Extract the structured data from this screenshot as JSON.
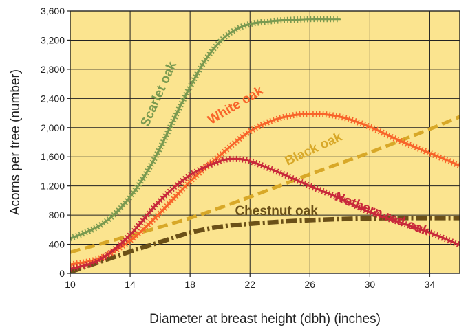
{
  "colors": {
    "plot_background": "#fbe48f",
    "grid": "#222222"
  },
  "chart_data": {
    "type": "line",
    "title": "",
    "xlabel": "Diameter at breast height (dbh) (inches)",
    "ylabel": "Acorns per tree (number)",
    "xlim": [
      10,
      36
    ],
    "ylim": [
      0,
      3600
    ],
    "grid": true,
    "x_ticks": [
      "10",
      "14",
      "18",
      "22",
      "26",
      "30",
      "34"
    ],
    "y_ticks": [
      "0",
      "400",
      "800",
      "1,200",
      "1,600",
      "2,000",
      "2,400",
      "2,800",
      "3,200",
      "3,600"
    ],
    "series": [
      {
        "name": "Scarlet oak",
        "color": "#7a9a50",
        "style": "stitched",
        "x": [
          10,
          11,
          12,
          13,
          14,
          15,
          16,
          17,
          18,
          19,
          20,
          21,
          22,
          23,
          24,
          25,
          26,
          27,
          28
        ],
        "y": [
          480,
          560,
          660,
          820,
          1050,
          1350,
          1720,
          2150,
          2560,
          2920,
          3180,
          3340,
          3420,
          3450,
          3470,
          3480,
          3490,
          3490,
          3490
        ]
      },
      {
        "name": "White oak",
        "color": "#f8642a",
        "style": "stitched",
        "x": [
          10,
          12,
          14,
          16,
          18,
          20,
          22,
          24,
          26,
          28,
          30,
          32,
          34,
          36
        ],
        "y": [
          120,
          210,
          450,
          830,
          1260,
          1620,
          1950,
          2130,
          2190,
          2150,
          2010,
          1820,
          1650,
          1480
        ]
      },
      {
        "name": "Black oak",
        "color": "#d8a828",
        "style": "dashed",
        "x": [
          10,
          14,
          18,
          22,
          26,
          30,
          34,
          36
        ],
        "y": [
          290,
          520,
          760,
          1050,
          1360,
          1660,
          1980,
          2150
        ]
      },
      {
        "name": "Nothern red oak",
        "color": "#c8283a",
        "style": "stitched",
        "x": [
          10,
          12,
          14,
          16,
          18,
          20,
          21,
          22,
          24,
          26,
          28,
          30,
          32,
          34,
          36
        ],
        "y": [
          60,
          190,
          530,
          1000,
          1350,
          1540,
          1570,
          1540,
          1380,
          1200,
          1030,
          840,
          700,
          560,
          390
        ]
      },
      {
        "name": "Chestnut oak",
        "color": "#6b5018",
        "style": "dashdot",
        "x": [
          10,
          12,
          14,
          16,
          18,
          20,
          22,
          24,
          26,
          28,
          30,
          32,
          34,
          36
        ],
        "y": [
          20,
          160,
          300,
          430,
          560,
          640,
          680,
          710,
          730,
          745,
          755,
          760,
          760,
          760
        ]
      }
    ],
    "annotations": [
      {
        "text": "Scarlet oak",
        "series": "Scarlet oak"
      },
      {
        "text": "White oak",
        "series": "White oak"
      },
      {
        "text": "Black oak",
        "series": "Black oak"
      },
      {
        "text": "Nothern red oak",
        "series": "Nothern red oak"
      },
      {
        "text": "Chestnut oak",
        "series": "Chestnut oak"
      }
    ]
  }
}
